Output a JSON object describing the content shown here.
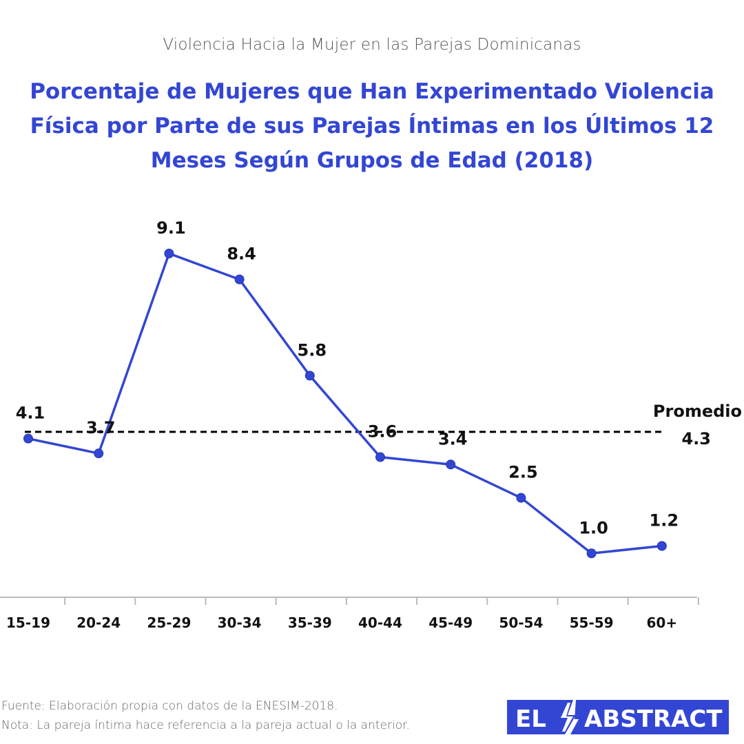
{
  "header": {
    "supertitle": "Violencia Hacia la Mujer en las Parejas Dominicanas",
    "title": "Porcentaje de Mujeres que Han Experimentado Violencia Física por Parte de sus Parejas Íntimas en los Últimos 12 Meses Según Grupos de Edad (2018)"
  },
  "chart_data": {
    "type": "line",
    "categories": [
      "15-19",
      "20-24",
      "25-29",
      "30-34",
      "35-39",
      "40-44",
      "45-49",
      "50-54",
      "55-59",
      "60+"
    ],
    "series": [
      {
        "values": [
          4.1,
          3.7,
          9.1,
          8.4,
          5.8,
          3.6,
          3.4,
          2.5,
          1.0,
          1.2
        ]
      }
    ],
    "data_labels": [
      "4.1",
      "3.7",
      "9.1",
      "8.4",
      "5.8",
      "3.6",
      "3.4",
      "2.5",
      "1.0",
      "1.2"
    ],
    "reference_line": {
      "label": "Promedio",
      "value": 4.3,
      "value_label": "4.3",
      "style": "dashed"
    },
    "ylim": [
      0.8,
      9.1
    ],
    "grid": false,
    "show_y_axis": false,
    "colors": {
      "line": "#3346d3",
      "marker": "#3346d3",
      "reference": "#000000",
      "axis": "#bbbbbb"
    }
  },
  "footer": {
    "source": "Fuente: Elaboración propia con datos de la ENESIM-2018.",
    "note": "Nota: La pareja íntima hace referencia a la pareja actual o la anterior."
  },
  "brand": {
    "left": "EL",
    "right": "ABSTRACT",
    "color": "#3346d3"
  }
}
